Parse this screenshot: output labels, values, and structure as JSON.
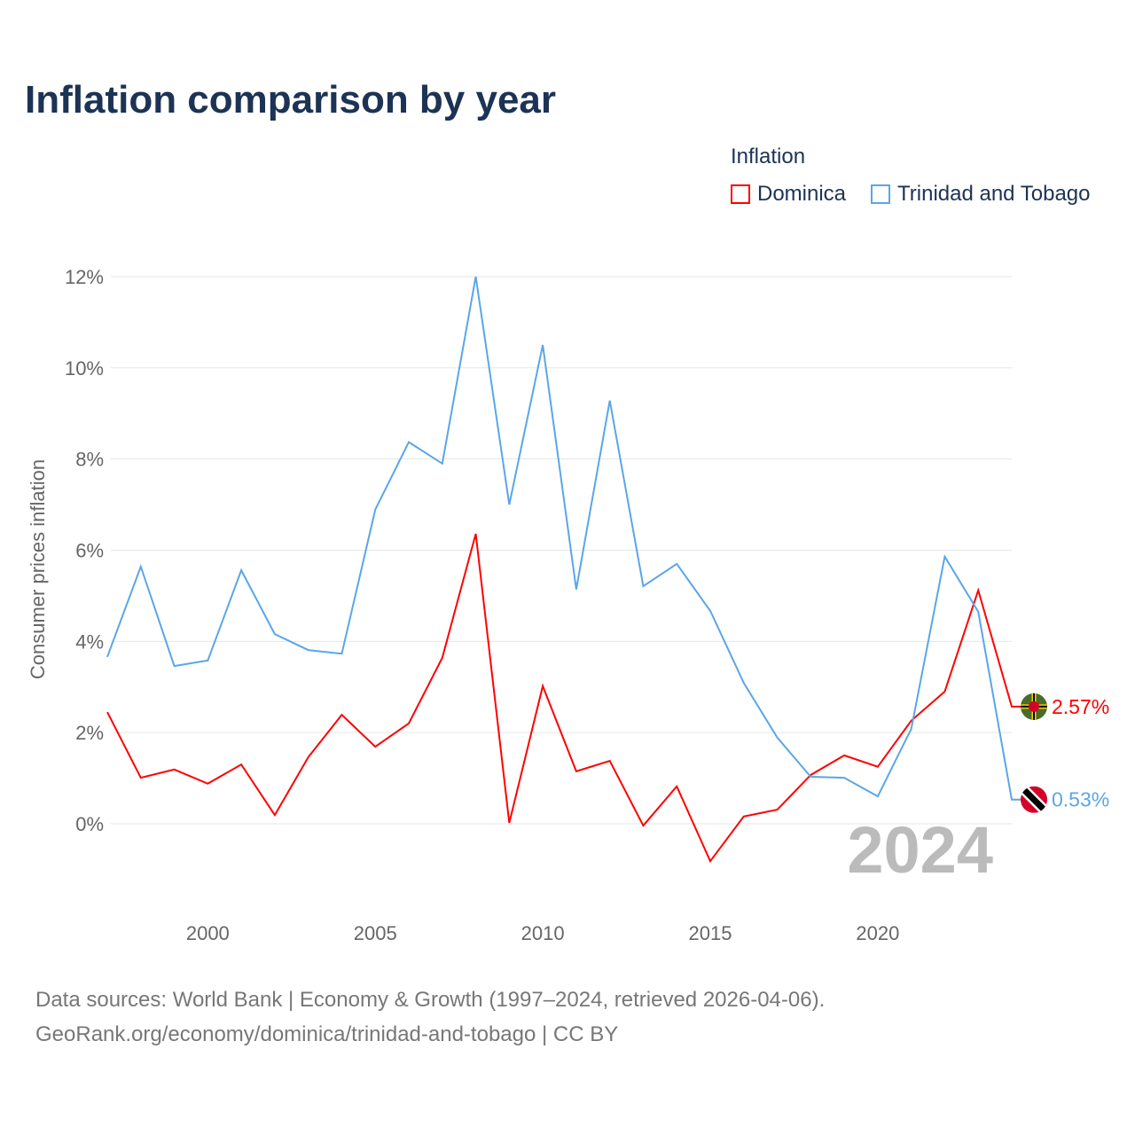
{
  "title": "Inflation comparison by year",
  "legend": {
    "title": "Inflation",
    "items": [
      {
        "label": "Dominica",
        "color": "#ff0000"
      },
      {
        "label": "Trinidad and Tobago",
        "color": "#5aa6e8"
      }
    ]
  },
  "footer": {
    "line1": "Data sources: World Bank | Economy & Growth (1997–2024, retrieved 2026-04-06).",
    "line2": "GeoRank.org/economy/dominica/trinidad-and-tobago | CC BY"
  },
  "chart_data": {
    "type": "line",
    "title": "Inflation comparison by year",
    "ylabel": "Consumer prices inflation",
    "xlabel": "",
    "year_watermark": "2024",
    "x": [
      1997,
      1998,
      1999,
      2000,
      2001,
      2002,
      2003,
      2004,
      2005,
      2006,
      2007,
      2008,
      2009,
      2010,
      2011,
      2012,
      2013,
      2014,
      2015,
      2016,
      2017,
      2018,
      2019,
      2020,
      2021,
      2022,
      2023,
      2024
    ],
    "xlim": [
      1997,
      2024
    ],
    "ylim": [
      -1.5,
      12
    ],
    "xticks": [
      "2000",
      "2005",
      "2010",
      "2015",
      "2020"
    ],
    "yticks": [
      "0%",
      "2%",
      "4%",
      "6%",
      "8%",
      "10%",
      "12%"
    ],
    "grid": true,
    "legend_position": "top-right",
    "series": [
      {
        "name": "Dominica",
        "color": "#ff0000",
        "end_label": "2.57%",
        "values": [
          2.45,
          1.01,
          1.19,
          0.88,
          1.3,
          0.19,
          1.46,
          2.39,
          1.69,
          2.2,
          3.64,
          6.36,
          0.02,
          3.02,
          1.15,
          1.38,
          -0.04,
          0.82,
          -0.82,
          0.16,
          0.31,
          1.07,
          1.5,
          1.25,
          2.26,
          2.9,
          5.12,
          2.57
        ]
      },
      {
        "name": "Trinidad and Tobago",
        "color": "#5aa6e8",
        "end_label": "0.53%",
        "values": [
          3.66,
          5.64,
          3.46,
          3.58,
          5.56,
          4.16,
          3.81,
          3.73,
          6.89,
          8.37,
          7.9,
          12.0,
          7.0,
          10.5,
          5.14,
          9.28,
          5.21,
          5.7,
          4.67,
          3.09,
          1.89,
          1.03,
          1.01,
          0.6,
          2.08,
          5.86,
          4.65,
          0.53
        ]
      }
    ]
  }
}
